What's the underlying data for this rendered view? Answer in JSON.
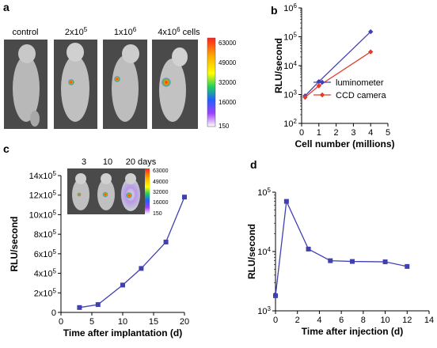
{
  "panel_letters": {
    "a": "a",
    "b": "b",
    "c": "c",
    "d": "d"
  },
  "panel_a": {
    "labels": [
      "control",
      "2x10^5",
      "1x10^6",
      "4x10^6 cells"
    ],
    "scale_ticks": [
      "63000",
      "49000",
      "32000",
      "16000",
      "150"
    ]
  },
  "panel_c_inset": {
    "labels": [
      "3",
      "10",
      "20 days"
    ],
    "scale_ticks": [
      "63000",
      "49000",
      "32000",
      "16000",
      "150"
    ]
  },
  "chart_data": [
    {
      "panel": "b",
      "type": "line",
      "xlabel": "Cell number (millions)",
      "ylabel": "RLU/second",
      "xlim": [
        0,
        5
      ],
      "ylim": [
        100,
        1000000
      ],
      "yscale": "log",
      "xticks": [
        0,
        1,
        2,
        3,
        4,
        5
      ],
      "ytick_labels": [
        "10^2",
        "10^3",
        "10^4",
        "10^5",
        "10^6"
      ],
      "legend_position": "bottom-right",
      "series": [
        {
          "name": "luminometer",
          "color": "#4040b0",
          "x": [
            0.2,
            1,
            4
          ],
          "y": [
            900,
            2800,
            150000
          ]
        },
        {
          "name": "CCD camera",
          "color": "#e53a2a",
          "x": [
            0.2,
            1,
            4
          ],
          "y": [
            800,
            2000,
            30000
          ]
        }
      ]
    },
    {
      "panel": "c",
      "type": "line",
      "xlabel": "Time after implantation (d)",
      "ylabel": "RLU/second",
      "xlim": [
        0,
        20
      ],
      "ylim": [
        0,
        1400000
      ],
      "xticks": [
        0,
        5,
        10,
        15,
        20
      ],
      "ytick_labels": [
        "0",
        "2x10^5",
        "4x10^5",
        "6x10^5",
        "8x10^5",
        "10x10^5",
        "12x10^5",
        "14x10^5"
      ],
      "series": [
        {
          "color": "#4040b0",
          "x": [
            3,
            6,
            10,
            13,
            17,
            20
          ],
          "y": [
            50000,
            80000,
            280000,
            450000,
            720000,
            1180000
          ]
        }
      ]
    },
    {
      "panel": "d",
      "type": "line",
      "xlabel": "Time after injection (d)",
      "ylabel": "RLU/second",
      "xlim": [
        0,
        14
      ],
      "ylim": [
        1000,
        100000
      ],
      "yscale": "log",
      "xticks": [
        0,
        2,
        4,
        6,
        8,
        10,
        12,
        14
      ],
      "ytick_labels": [
        "10^3",
        "10^4",
        "10^5"
      ],
      "series": [
        {
          "color": "#4040b0",
          "x": [
            0,
            1,
            3,
            5,
            7,
            10,
            12
          ],
          "y": [
            1800,
            70000,
            11000,
            7000,
            6800,
            6700,
            5600
          ]
        }
      ]
    }
  ]
}
